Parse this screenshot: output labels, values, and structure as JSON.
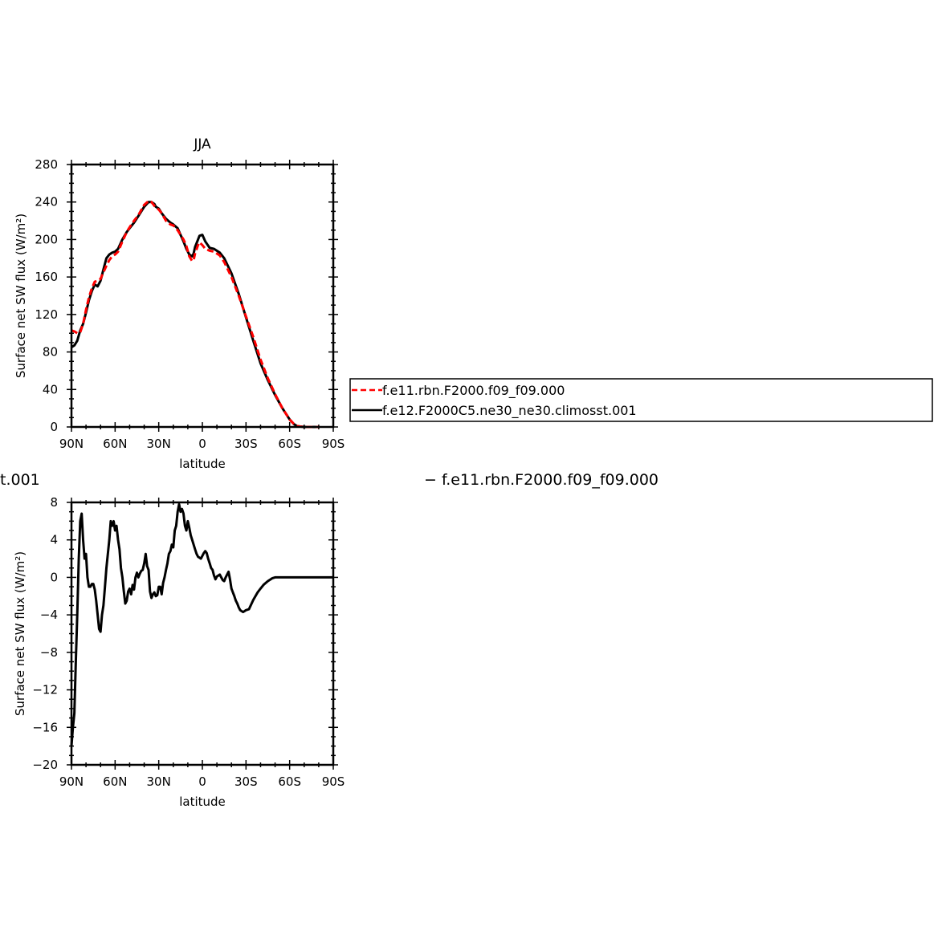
{
  "chart_data": [
    {
      "type": "line",
      "title": "JJA",
      "xlabel": "latitude",
      "ylabel": "Surface net SW flux (W/m²)",
      "xlim": [
        90,
        -90
      ],
      "ylim": [
        0,
        280
      ],
      "xticks": [
        90,
        60,
        30,
        0,
        -30,
        -60,
        -90
      ],
      "xtick_labels": [
        "90N",
        "60N",
        "30N",
        "0",
        "30S",
        "60S",
        "90S"
      ],
      "yticks": [
        0,
        40,
        80,
        120,
        160,
        200,
        240,
        280
      ],
      "ytick_labels": [
        "0",
        "40",
        "80",
        "120",
        "160",
        "200",
        "240",
        "280"
      ],
      "legend_position": "right",
      "series": [
        {
          "name": "f.e11.rbn.F2000.f09_f09.000",
          "color": "#ff0000",
          "dash": "dashed",
          "x": [
            90,
            88,
            86,
            84,
            82,
            80,
            78,
            76,
            74,
            72,
            70,
            68,
            66,
            64,
            62,
            60,
            58,
            55,
            52,
            50,
            47,
            44,
            40,
            37,
            35,
            33,
            32,
            30,
            28,
            25,
            22,
            20,
            17,
            15,
            13,
            11,
            9,
            7,
            6,
            5,
            3,
            2,
            0,
            -2,
            -5,
            -8,
            -12,
            -15,
            -20,
            -25,
            -30,
            -35,
            -40,
            -45,
            -50,
            -55,
            -60,
            -63,
            -65,
            -67,
            -70,
            -75,
            -80
          ],
          "y": [
            103,
            102,
            100,
            101,
            110,
            125,
            138,
            148,
            155,
            156,
            158,
            165,
            172,
            178,
            182,
            184,
            187,
            198,
            208,
            213,
            220,
            226,
            237,
            241,
            240,
            236,
            234,
            232,
            228,
            220,
            216,
            215,
            210,
            205,
            200,
            193,
            182,
            177,
            178,
            185,
            194,
            197,
            194,
            190,
            188,
            187,
            183,
            176,
            160,
            140,
            118,
            96,
            72,
            52,
            35,
            20,
            8,
            3,
            1,
            0.5,
            0,
            0,
            0
          ]
        },
        {
          "name": "f.e12.F2000C5.ne30_ne30.climosst.001",
          "color": "#000000",
          "dash": "solid",
          "x": [
            90,
            88,
            86,
            84,
            82,
            80,
            78,
            76,
            74,
            72,
            70,
            68,
            66,
            64,
            62,
            60,
            58,
            55,
            52,
            50,
            47,
            44,
            40,
            37,
            35,
            33,
            32,
            30,
            28,
            25,
            22,
            20,
            17,
            15,
            13,
            11,
            9,
            7,
            6,
            5,
            3,
            2,
            0,
            -2,
            -5,
            -8,
            -12,
            -15,
            -20,
            -25,
            -30,
            -35,
            -40,
            -45,
            -50,
            -55,
            -60,
            -63,
            -65,
            -67,
            -70,
            -75,
            -80
          ],
          "y": [
            85,
            87,
            92,
            103,
            110,
            122,
            135,
            145,
            152,
            150,
            156,
            168,
            180,
            184,
            186,
            187,
            190,
            200,
            208,
            212,
            218,
            225,
            235,
            240,
            240,
            238,
            235,
            233,
            228,
            222,
            218,
            216,
            212,
            205,
            198,
            190,
            184,
            182,
            185,
            192,
            200,
            204,
            205,
            198,
            191,
            190,
            186,
            180,
            164,
            142,
            117,
            92,
            68,
            50,
            34,
            20,
            8,
            3,
            1,
            0.5,
            0,
            0,
            0
          ]
        }
      ]
    },
    {
      "type": "line",
      "title": "",
      "xlabel": "latitude",
      "ylabel": "Surface net SW flux (W/m²)",
      "xlim": [
        90,
        -90
      ],
      "ylim": [
        -20,
        8
      ],
      "xticks": [
        90,
        60,
        30,
        0,
        -30,
        -60,
        -90
      ],
      "xtick_labels": [
        "90N",
        "60N",
        "30N",
        "0",
        "30S",
        "60S",
        "90S"
      ],
      "yticks": [
        -20,
        -16,
        -12,
        -8,
        -4,
        0,
        4,
        8
      ],
      "ytick_labels": [
        "−20",
        "−16",
        "−12",
        "−8",
        "−4",
        "0",
        "4",
        "8"
      ],
      "series": [
        {
          "name": "",
          "color": "#000000",
          "dash": "solid",
          "x": [
            90,
            89,
            88,
            87,
            86,
            85,
            84,
            83,
            82,
            81,
            80,
            79,
            78,
            77,
            76,
            75,
            74,
            73,
            72,
            71,
            70,
            69,
            68,
            67,
            66,
            65,
            64,
            63,
            62,
            61,
            60,
            59,
            58,
            57,
            56,
            55,
            54,
            53,
            52,
            51,
            50,
            49,
            48,
            47,
            46,
            45,
            44,
            43,
            42,
            41,
            40,
            39,
            38,
            37,
            36,
            35,
            34,
            33,
            32,
            31,
            30,
            29,
            28,
            27,
            26,
            25,
            24,
            23,
            22,
            21,
            20,
            19,
            18,
            17,
            16,
            15,
            14,
            13,
            12,
            11,
            10,
            9,
            8,
            7,
            6,
            5,
            4,
            3,
            2,
            1,
            0,
            -1,
            -2,
            -3,
            -4,
            -5,
            -6,
            -7,
            -8,
            -9,
            -10,
            -11,
            -12,
            -13,
            -14,
            -15,
            -16,
            -17,
            -18,
            -19,
            -20,
            -21,
            -22,
            -23,
            -24,
            -25,
            -26,
            -27,
            -28,
            -29,
            -30,
            -32,
            -35,
            -38,
            -40,
            -42,
            -45,
            -48,
            -50,
            -52,
            -55,
            -58,
            -60,
            -62,
            -65,
            -70,
            -75,
            -80,
            -85,
            -90
          ],
          "y": [
            -18,
            -16,
            -14.5,
            -9,
            -4,
            2,
            6,
            6.8,
            4,
            2,
            2.5,
            0,
            -1,
            -1,
            -0.7,
            -0.7,
            -1.3,
            -2.5,
            -4,
            -5.5,
            -5.8,
            -4,
            -3,
            -1,
            1,
            2.5,
            4,
            6,
            5.5,
            6,
            5,
            5.5,
            4,
            3,
            1,
            0,
            -1.5,
            -2.8,
            -2.5,
            -1.5,
            -1.2,
            -1.8,
            -0.8,
            -1.3,
            0,
            0.5,
            0,
            0.4,
            0.7,
            0.8,
            1.5,
            2.5,
            1.2,
            0.8,
            -1.5,
            -2.2,
            -1.8,
            -1.6,
            -2,
            -1.9,
            -1,
            -1,
            -1.8,
            -0.6,
            0,
            0.8,
            1.5,
            2.5,
            2.8,
            3.5,
            3.2,
            5,
            5.5,
            7,
            7.8,
            7,
            7.3,
            6.8,
            5.5,
            5,
            6,
            5.3,
            4.5,
            4,
            3.5,
            3,
            2.5,
            2.2,
            2.1,
            2,
            2.3,
            2.6,
            2.8,
            2.6,
            2,
            1.5,
            1.0,
            0.8,
            0.2,
            -0.2,
            0.1,
            0.2,
            0.3,
            0,
            -0.3,
            -0.4,
            0.0,
            0.3,
            0.6,
            -0.2,
            -1.2,
            -1.6,
            -2,
            -2.5,
            -2.8,
            -3.2,
            -3.5,
            -3.6,
            -3.7,
            -3.6,
            -3.5,
            -3.4,
            -2.4,
            -1.6,
            -1.2,
            -0.8,
            -0.4,
            -0.1,
            0,
            0,
            0,
            0,
            0,
            0,
            0,
            0,
            0,
            0,
            0,
            0
          ]
        }
      ]
    }
  ],
  "stray_text": {
    "left_fragment": "t.001",
    "right_fragment": "−  f.e11.rbn.F2000.f09_f09.000"
  }
}
